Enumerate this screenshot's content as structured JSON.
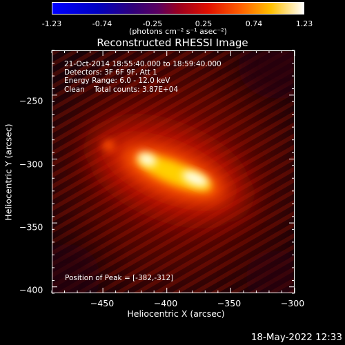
{
  "colorbar": {
    "ticks": [
      "-1.23",
      "-0.74",
      "-0.25",
      "0.25",
      "0.74",
      "1.23"
    ],
    "units": "(photons cm⁻² s⁻¹ asec⁻²)"
  },
  "chart_data": {
    "type": "heatmap",
    "title": "Reconstructed RHESSI Image",
    "xlabel": "Heliocentric X (arcsec)",
    "ylabel": "Heliocentric Y (arcsec)",
    "xlim": [
      -490,
      -300
    ],
    "ylim": [
      -405,
      -215
    ],
    "xticks": [
      -450,
      -400,
      -350,
      -300
    ],
    "xtick_labels": [
      "−450",
      "−400",
      "−350",
      "−300"
    ],
    "yticks": [
      -250,
      -300,
      -350,
      -400
    ],
    "ytick_labels": [
      "−250",
      "−300",
      "−350",
      "−400"
    ],
    "colorbar_range": [
      -1.23,
      1.23
    ],
    "peak_position": [
      -382,
      -312
    ],
    "annotations": {
      "info_lines": [
        "21-Oct-2014 18:55:40.000 to 18:59:40.000",
        "Detectors: 3F 6F 9F, Att 1",
        "Energy Range: 6.0 - 12.0 keV",
        "Clean    Total counts: 3.87E+04"
      ],
      "peak_text": "Position of Peak = [-382,-312]"
    }
  },
  "footer": {
    "timestamp": "18-May-2022 12:33"
  },
  "colors": {
    "background": "#000000",
    "text": "#ffffff"
  }
}
